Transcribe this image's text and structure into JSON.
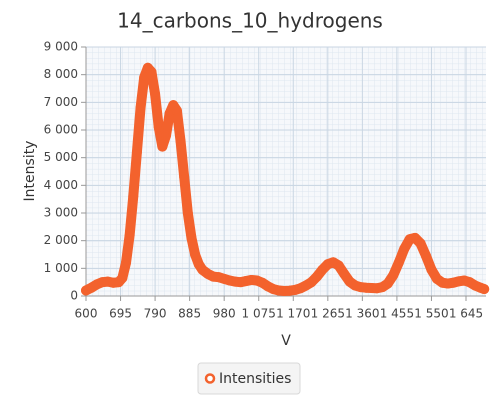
{
  "chart_data": {
    "type": "line",
    "title": "14_carbons_10_hydrogens",
    "x_label": "V",
    "y_label": "Intensity",
    "series": [
      {
        "name": "Intensities",
        "color": "#f3622d",
        "x": [
          600,
          615,
          630,
          645,
          660,
          675,
          690,
          700,
          710,
          720,
          730,
          740,
          750,
          760,
          770,
          780,
          790,
          800,
          810,
          820,
          830,
          840,
          850,
          860,
          870,
          880,
          890,
          900,
          910,
          920,
          935,
          950,
          965,
          980,
          995,
          1010,
          1025,
          1040,
          1055,
          1070,
          1085,
          1100,
          1115,
          1130,
          1145,
          1160,
          1175,
          1190,
          1205,
          1220,
          1235,
          1250,
          1265,
          1280,
          1295,
          1310,
          1325,
          1340,
          1355,
          1370,
          1385,
          1400,
          1415,
          1430,
          1445,
          1460,
          1475,
          1490,
          1505,
          1520,
          1535,
          1550,
          1565,
          1580,
          1595,
          1610,
          1625,
          1640,
          1655,
          1670,
          1685,
          1695
        ],
        "values": [
          200,
          300,
          420,
          500,
          520,
          480,
          500,
          650,
          1200,
          2200,
          3600,
          5200,
          6800,
          7900,
          8250,
          8100,
          7300,
          6100,
          5400,
          5800,
          6600,
          6900,
          6700,
          5600,
          4300,
          3000,
          2100,
          1500,
          1150,
          950,
          800,
          700,
          680,
          620,
          560,
          520,
          500,
          540,
          580,
          560,
          480,
          350,
          250,
          200,
          180,
          190,
          220,
          280,
          380,
          500,
          700,
          950,
          1150,
          1220,
          1100,
          800,
          520,
          380,
          320,
          300,
          290,
          280,
          320,
          450,
          750,
          1200,
          1700,
          2050,
          2100,
          1900,
          1450,
          950,
          620,
          480,
          450,
          480,
          530,
          560,
          500,
          380,
          300,
          250
        ]
      }
    ],
    "xlim": [
      600,
      1700
    ],
    "xticks": [
      600,
      695,
      790,
      885,
      980,
      {
        "value": 1075,
        "label": "1 075"
      },
      {
        "value": 1170,
        "label": "1 170"
      },
      {
        "value": 1265,
        "label": "1 265"
      },
      {
        "value": 1360,
        "label": "1 360"
      },
      {
        "value": 1455,
        "label": "1 455"
      },
      {
        "value": 1550,
        "label": "1 550"
      },
      {
        "value": 1645,
        "label": "1 645"
      }
    ],
    "ylim": [
      0,
      9000
    ],
    "yticks": [
      0,
      {
        "value": 1000,
        "label": "1 000"
      },
      {
        "value": 2000,
        "label": "2 000"
      },
      {
        "value": 3000,
        "label": "3 000"
      },
      {
        "value": 4000,
        "label": "4 000"
      },
      {
        "value": 5000,
        "label": "5 000"
      },
      {
        "value": 6000,
        "label": "6 000"
      },
      {
        "value": 7000,
        "label": "7 000"
      },
      {
        "value": 8000,
        "label": "8 000"
      },
      {
        "value": 9000,
        "label": "9 000"
      }
    ],
    "grid": true
  }
}
